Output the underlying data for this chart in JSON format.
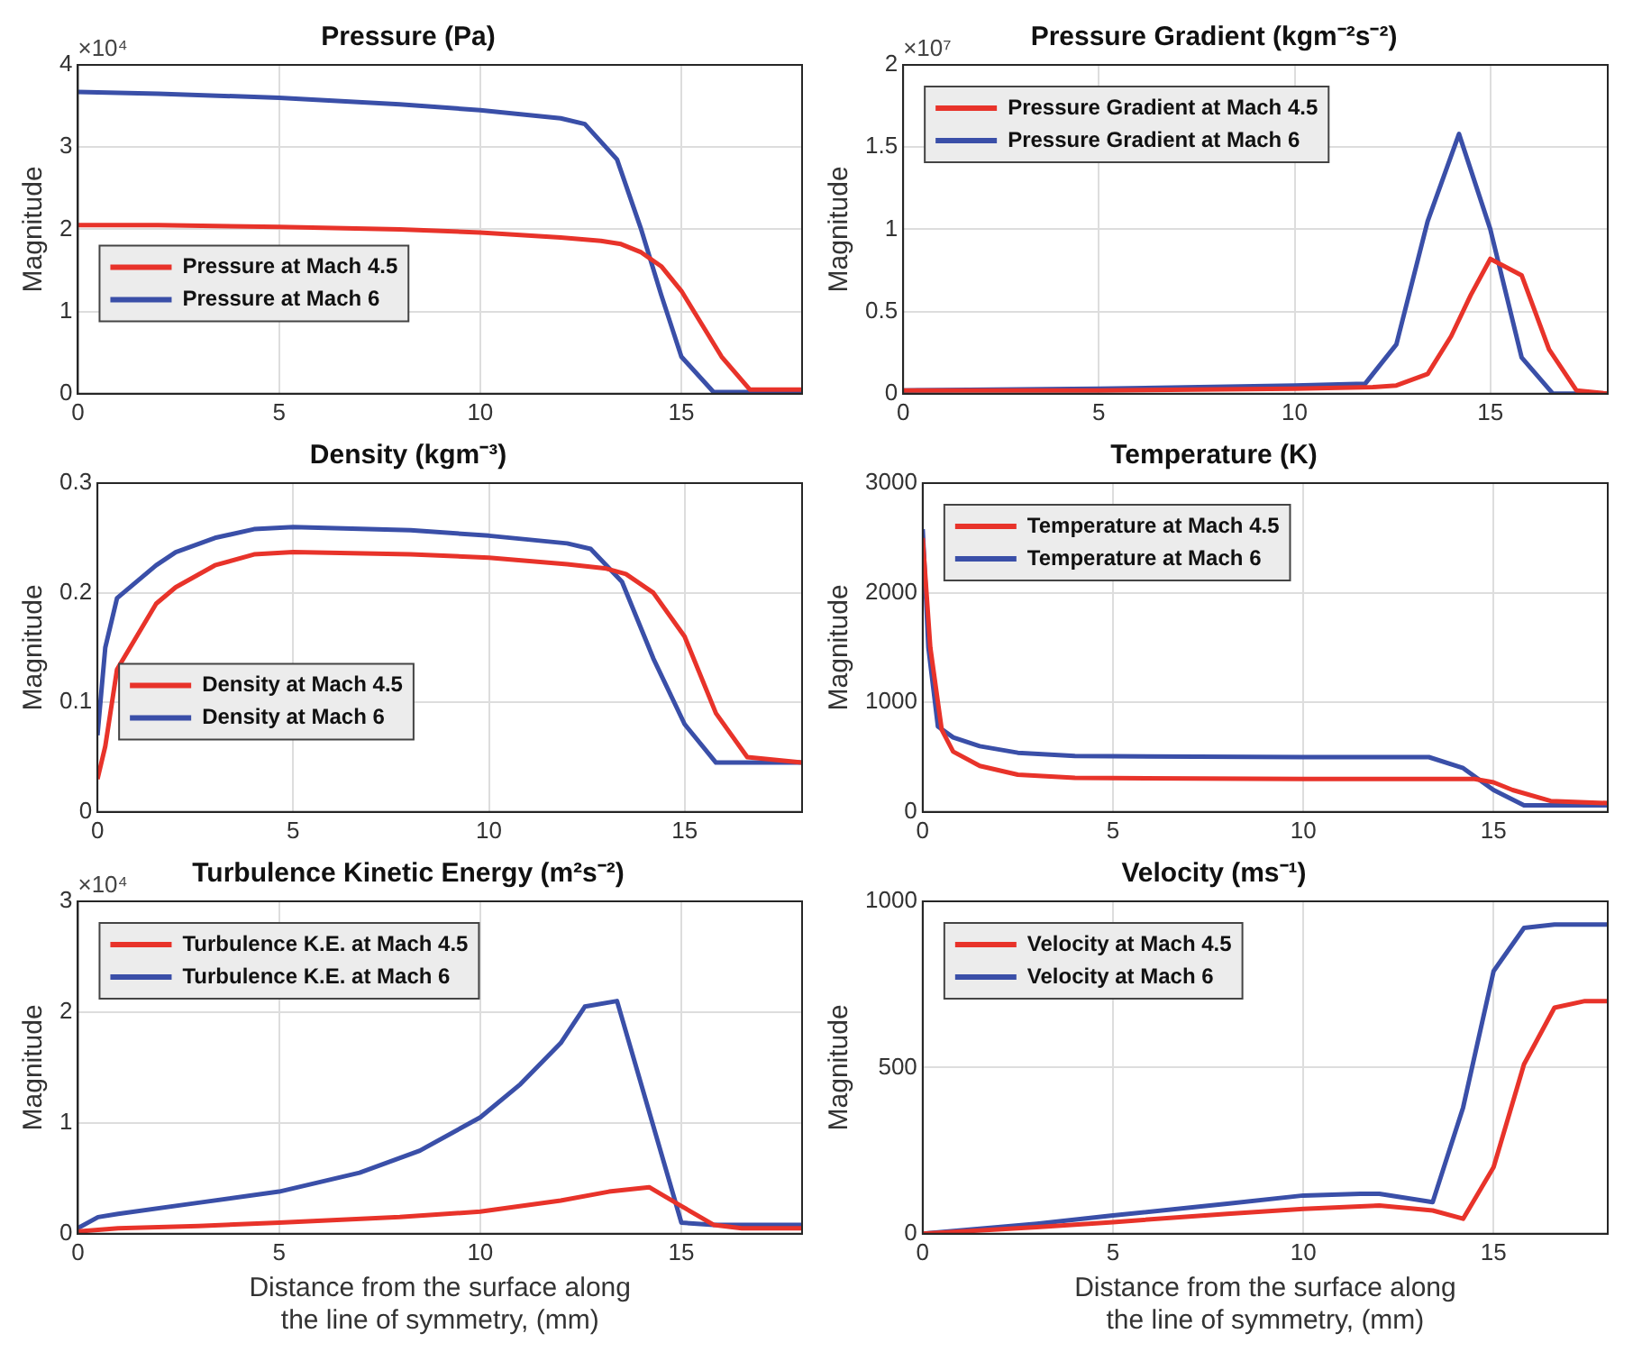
{
  "chart_data": [
    {
      "type": "line",
      "title": "Pressure (Pa)",
      "ylabel": "Magnitude",
      "annotations": [
        "×10⁴"
      ],
      "xlim": [
        0,
        18
      ],
      "xticks": [
        0,
        5,
        10,
        15
      ],
      "ylim": [
        0,
        4
      ],
      "yticks": [
        0,
        1,
        2,
        3,
        4
      ],
      "grid": true,
      "legend": "bottom left",
      "series": [
        {
          "name": "Pressure at Mach 4.5",
          "color": "#e8332a",
          "x": [
            0,
            2,
            5,
            8,
            10,
            12,
            13,
            13.5,
            14,
            14.5,
            15,
            15.5,
            16,
            16.7,
            18
          ],
          "values": [
            2.05,
            2.05,
            2.03,
            2.0,
            1.96,
            1.9,
            1.86,
            1.82,
            1.72,
            1.55,
            1.25,
            0.85,
            0.45,
            0.05,
            0.05
          ]
        },
        {
          "name": "Pressure at Mach 6",
          "color": "#3a4fa8",
          "x": [
            0,
            2,
            5,
            8,
            10,
            12,
            12.6,
            13.4,
            14,
            14.5,
            15,
            15.8,
            18
          ],
          "values": [
            3.67,
            3.65,
            3.6,
            3.52,
            3.45,
            3.35,
            3.28,
            2.85,
            2.0,
            1.2,
            0.45,
            0.02,
            0.02
          ]
        }
      ]
    },
    {
      "type": "line",
      "title": "Pressure Gradient (kgm⁻²s⁻²)",
      "ylabel": "Magnitude",
      "annotations": [
        "×10⁷"
      ],
      "xlim": [
        0,
        18
      ],
      "xticks": [
        0,
        5,
        10,
        15
      ],
      "ylim": [
        0,
        2
      ],
      "yticks": [
        0,
        0.5,
        1,
        1.5,
        2
      ],
      "grid": true,
      "legend": "top left",
      "series": [
        {
          "name": "Pressure Gradient at Mach 4.5",
          "color": "#e8332a",
          "x": [
            0,
            5,
            10,
            12,
            12.6,
            13.4,
            14,
            14.5,
            15,
            15.8,
            16.5,
            17.2,
            18
          ],
          "values": [
            0.02,
            0.02,
            0.03,
            0.04,
            0.05,
            0.12,
            0.35,
            0.6,
            0.82,
            0.72,
            0.27,
            0.02,
            0
          ]
        },
        {
          "name": "Pressure Gradient at Mach 6",
          "color": "#3a4fa8",
          "x": [
            0,
            5,
            10,
            11.8,
            12.6,
            13.4,
            14.2,
            15,
            15.8,
            16.6,
            18
          ],
          "values": [
            0.02,
            0.03,
            0.05,
            0.06,
            0.3,
            1.05,
            1.58,
            1.0,
            0.22,
            0,
            0
          ]
        }
      ]
    },
    {
      "type": "line",
      "title": "Density (kgm⁻³)",
      "ylabel": "Magnitude",
      "xlim": [
        0,
        18
      ],
      "xticks": [
        0,
        5,
        10,
        15
      ],
      "ylim": [
        0,
        0.3
      ],
      "yticks": [
        0,
        0.1,
        0.2,
        0.3
      ],
      "grid": true,
      "legend": "bottom left",
      "series": [
        {
          "name": "Density at Mach 4.5",
          "color": "#e8332a",
          "x": [
            0,
            0.2,
            0.5,
            1,
            1.5,
            2,
            3,
            4,
            5,
            8,
            10,
            12,
            13,
            13.5,
            14.2,
            15,
            15.8,
            16.6,
            18
          ],
          "values": [
            0.03,
            0.06,
            0.13,
            0.16,
            0.19,
            0.205,
            0.225,
            0.235,
            0.237,
            0.235,
            0.232,
            0.226,
            0.222,
            0.217,
            0.2,
            0.16,
            0.09,
            0.05,
            0.045
          ]
        },
        {
          "name": "Density at Mach 6",
          "color": "#3a4fa8",
          "x": [
            0,
            0.2,
            0.5,
            1,
            1.5,
            2,
            3,
            4,
            5,
            8,
            10,
            12,
            12.6,
            13.4,
            14.2,
            15,
            15.8,
            18
          ],
          "values": [
            0.07,
            0.15,
            0.195,
            0.21,
            0.225,
            0.237,
            0.25,
            0.258,
            0.26,
            0.257,
            0.252,
            0.245,
            0.24,
            0.21,
            0.14,
            0.08,
            0.045,
            0.045
          ]
        }
      ]
    },
    {
      "type": "line",
      "title": "Temperature (K)",
      "ylabel": "Magnitude",
      "xlim": [
        0,
        18
      ],
      "xticks": [
        0,
        5,
        10,
        15
      ],
      "ylim": [
        0,
        3000
      ],
      "yticks": [
        0,
        1000,
        2000,
        3000
      ],
      "grid": true,
      "legend": "top left",
      "series": [
        {
          "name": "Temperature at Mach 4.5",
          "color": "#e8332a",
          "x": [
            0,
            0.2,
            0.5,
            0.8,
            1.5,
            2.5,
            4,
            10,
            14.5,
            15,
            15.5,
            16.5,
            18
          ],
          "values": [
            2500,
            1500,
            750,
            550,
            420,
            340,
            310,
            300,
            300,
            270,
            200,
            100,
            80
          ]
        },
        {
          "name": "Temperature at Mach 6",
          "color": "#3a4fa8",
          "x": [
            0,
            0.15,
            0.4,
            0.8,
            1.5,
            2.5,
            4,
            10,
            13.3,
            14.2,
            15,
            15.8,
            18
          ],
          "values": [
            2580,
            1500,
            780,
            680,
            600,
            540,
            510,
            500,
            500,
            400,
            200,
            60,
            60
          ]
        }
      ]
    },
    {
      "type": "line",
      "title": "Turbulence Kinetic Energy (m²s⁻²)",
      "xlabel": "Distance from the surface along the line of symmetry, (mm)",
      "ylabel": "Magnitude",
      "annotations": [
        "×10⁴"
      ],
      "xlim": [
        0,
        18
      ],
      "xticks": [
        0,
        5,
        10,
        15
      ],
      "ylim": [
        0,
        3
      ],
      "yticks": [
        0,
        1,
        2,
        3
      ],
      "grid": true,
      "legend": "top left",
      "series": [
        {
          "name": "Turbulence K.E. at Mach 4.5",
          "color": "#e8332a",
          "x": [
            0,
            1,
            3,
            5,
            8,
            10,
            12,
            13.2,
            14.2,
            15,
            15.8,
            16.5,
            18
          ],
          "values": [
            0.02,
            0.05,
            0.07,
            0.1,
            0.15,
            0.2,
            0.3,
            0.38,
            0.42,
            0.25,
            0.08,
            0.05,
            0.05
          ]
        },
        {
          "name": "Turbulence K.E. at Mach 6",
          "color": "#3a4fa8",
          "x": [
            0,
            0.5,
            1,
            3,
            5,
            7,
            8.5,
            10,
            11,
            12,
            12.6,
            13.4,
            15,
            15.8,
            18
          ],
          "values": [
            0.05,
            0.15,
            0.18,
            0.28,
            0.38,
            0.55,
            0.75,
            1.05,
            1.35,
            1.72,
            2.05,
            2.1,
            0.1,
            0.08,
            0.08
          ]
        }
      ]
    },
    {
      "type": "line",
      "title": "Velocity (ms⁻¹)",
      "xlabel": "Distance from the surface along the line of symmetry, (mm)",
      "ylabel": "Magnitude",
      "xlim": [
        0,
        18
      ],
      "xticks": [
        0,
        5,
        10,
        15
      ],
      "ylim": [
        0,
        1000
      ],
      "yticks": [
        0,
        500,
        1000
      ],
      "grid": true,
      "legend": "top left",
      "series": [
        {
          "name": "Velocity at Mach 4.5",
          "color": "#e8332a",
          "x": [
            0,
            3,
            5,
            8,
            10,
            12,
            13.4,
            14.2,
            15,
            15.8,
            16.6,
            17.4,
            18
          ],
          "values": [
            0,
            20,
            35,
            60,
            75,
            85,
            70,
            45,
            200,
            510,
            680,
            700,
            700
          ]
        },
        {
          "name": "Velocity at Mach 6",
          "color": "#3a4fa8",
          "x": [
            0,
            3,
            5,
            8,
            10,
            11.5,
            12,
            13.4,
            14.2,
            15,
            15.8,
            16.6,
            18
          ],
          "values": [
            0,
            30,
            55,
            90,
            115,
            120,
            120,
            95,
            380,
            790,
            920,
            930,
            930
          ]
        }
      ]
    }
  ]
}
